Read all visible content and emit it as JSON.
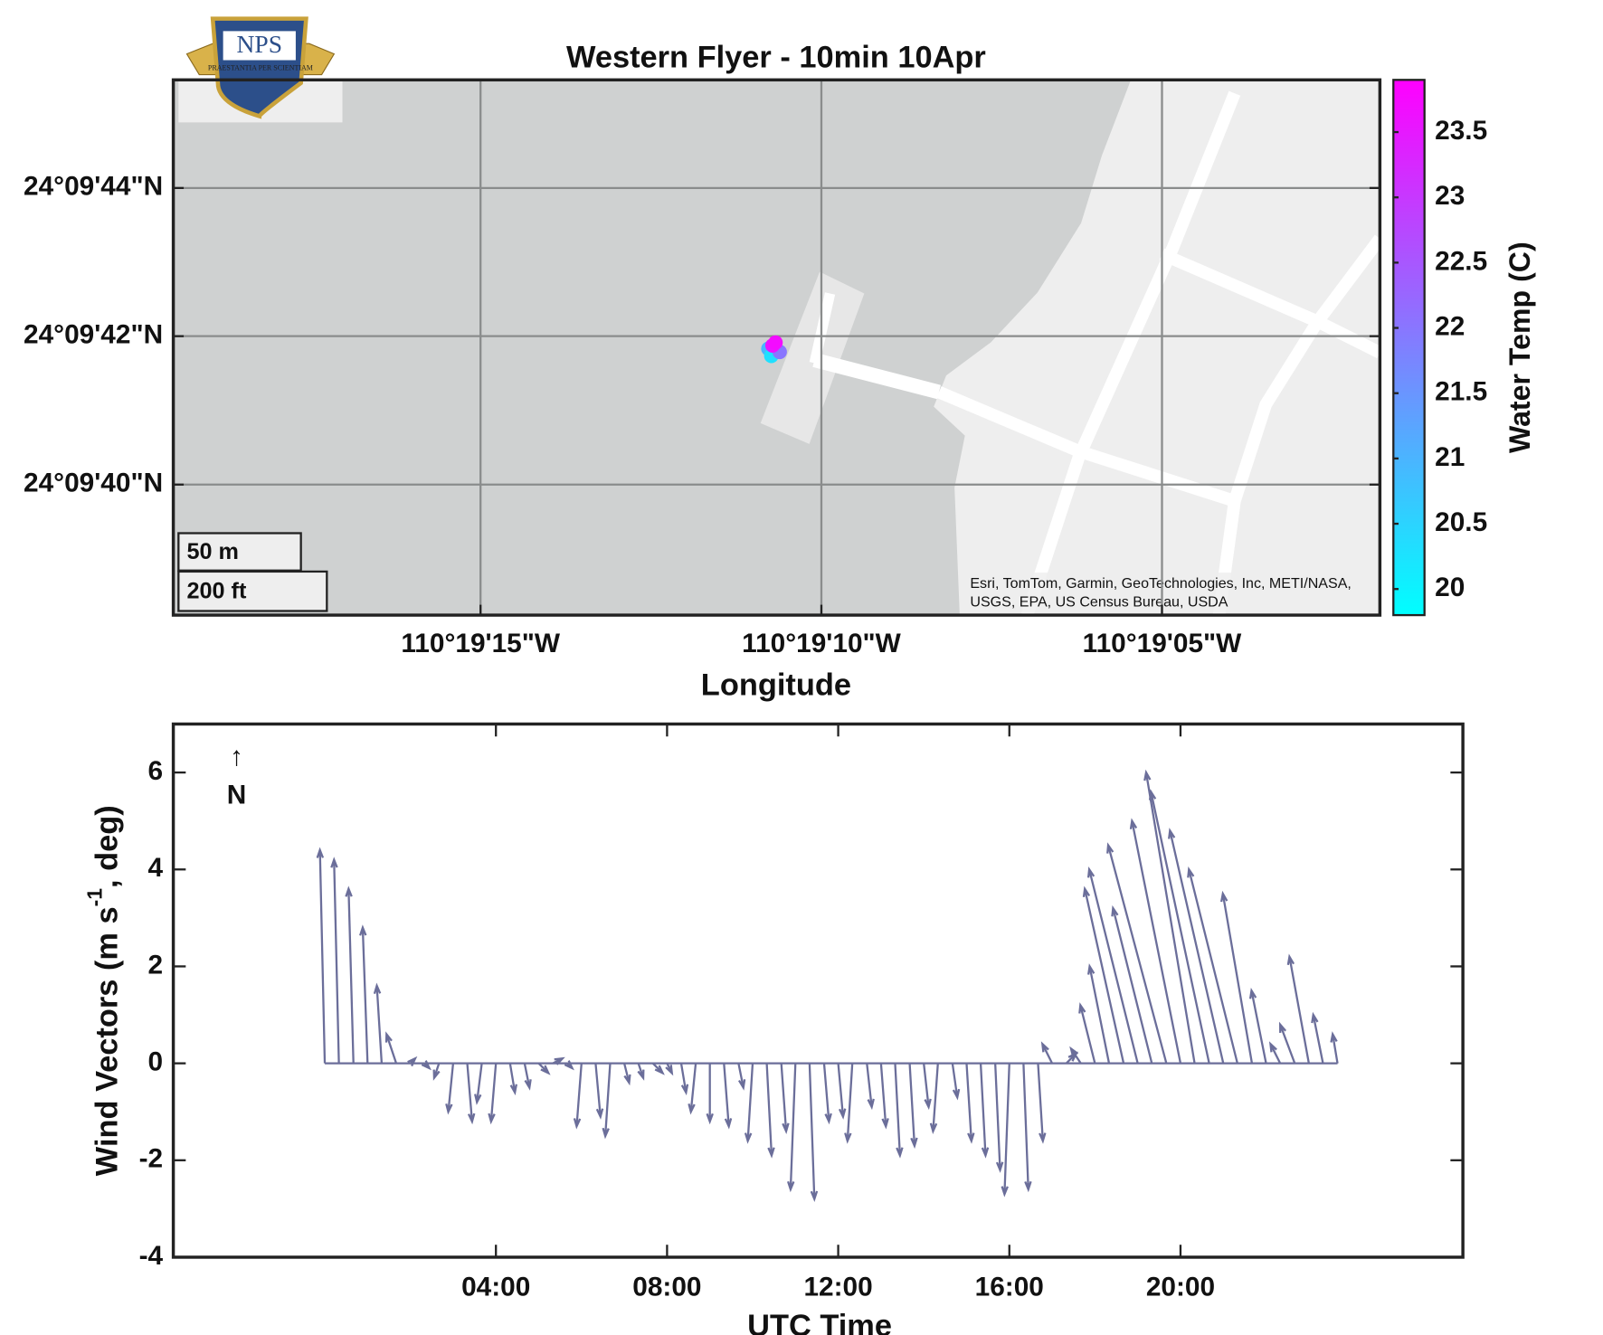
{
  "logo": {
    "text": "NPS",
    "motto": "PRAESTANTIA PER SCIENTIAM"
  },
  "chart_data": [
    {
      "type": "map",
      "title": "Western Flyer - 10min 10Apr",
      "xlabel": "Longitude",
      "xlim": [
        -110.322085,
        -110.317168
      ],
      "ylim": [
        24.160622,
        24.162627
      ],
      "xticks": [
        {
          "value": -110.320833,
          "label": "110°19'15\"W"
        },
        {
          "value": -110.319444,
          "label": "110°19'10\"W"
        },
        {
          "value": -110.318056,
          "label": "110°19'05\"W"
        }
      ],
      "yticks": [
        {
          "value": 24.161111,
          "label": "24°09'40\"N"
        },
        {
          "value": 24.161667,
          "label": "24°09'42\"N"
        },
        {
          "value": 24.162222,
          "label": "24°09'44\"N"
        }
      ],
      "grid": true,
      "x": [
        -110.31966,
        -110.319648,
        -110.319614,
        -110.319643,
        -110.319631
      ],
      "y": [
        24.16162,
        24.161593,
        24.161608,
        24.161632,
        24.161643
      ],
      "values": [
        21.0,
        20.3,
        22.0,
        23.6,
        23.7
      ],
      "colorbar": {
        "label": "Water Temp (C)",
        "clim": [
          19.8,
          23.9
        ],
        "ticks": [
          20,
          20.5,
          21,
          21.5,
          22,
          22.5,
          23,
          23.5
        ],
        "colormap": [
          "#00ffff",
          "#ff00ff"
        ]
      },
      "scale_bar": [
        "50 m",
        "200 ft"
      ],
      "attribution": [
        "Esri, TomTom, Garmin, GeoTechnologies, Inc, METI/NASA,",
        "USGS, EPA, US Census Bureau, USDA"
      ]
    },
    {
      "type": "quiver",
      "xlabel": "UTC Time",
      "ylabel": [
        "Wind Vectors (m s",
        "-1",
        ", deg)"
      ],
      "xlim": [
        -3.54,
        26.6
      ],
      "ylim": [
        -4,
        7
      ],
      "xticks": [
        {
          "value": 4,
          "label": "04:00"
        },
        {
          "value": 8,
          "label": "08:00"
        },
        {
          "value": 12,
          "label": "12:00"
        },
        {
          "value": 16,
          "label": "16:00"
        },
        {
          "value": 20,
          "label": "20:00"
        }
      ],
      "yticks": [
        -4,
        -2,
        0,
        2,
        4,
        6
      ],
      "color": "#6b6e9a",
      "north_arrow": "↑",
      "north_label": "N",
      "x": [
        0,
        0.33,
        0.67,
        1,
        1.33,
        1.67,
        2,
        2.33,
        2.67,
        3,
        3.33,
        3.67,
        4,
        4.33,
        4.67,
        5,
        5.33,
        5.67,
        6,
        6.33,
        6.67,
        7,
        7.33,
        7.67,
        8,
        8.33,
        8.67,
        9,
        9.33,
        9.67,
        10,
        10.33,
        10.67,
        11,
        11.33,
        11.67,
        12,
        12.33,
        12.67,
        13,
        13.33,
        13.67,
        14,
        14.33,
        14.67,
        15,
        15.33,
        15.67,
        16,
        16.33,
        16.67,
        17,
        17.33,
        17.67,
        18,
        18.33,
        18.67,
        19,
        19.33,
        19.67,
        20,
        20.33,
        20.67,
        21,
        21.33,
        21.67,
        22,
        22.33,
        22.67,
        23,
        23.33,
        23.67
      ],
      "u": [
        -0.1,
        -0.1,
        -0.1,
        -0.1,
        -0.1,
        -0.2,
        0.1,
        0.1,
        -0.1,
        -0.1,
        0.1,
        -0.1,
        -0.1,
        0.1,
        0.1,
        0.2,
        0.2,
        0.1,
        -0.1,
        0.1,
        -0.1,
        0.1,
        0.1,
        0.2,
        0.1,
        0.1,
        -0.1,
        0,
        0.1,
        0.1,
        -0.1,
        0.1,
        0.1,
        -0.1,
        0.1,
        0.1,
        0.1,
        -0.1,
        0.1,
        0.1,
        0.1,
        0.1,
        0.1,
        -0.1,
        0.1,
        0.1,
        0.1,
        0.1,
        -0.1,
        0.1,
        0.1,
        -0.2,
        0.2,
        -0.2,
        -0.3,
        -0.4,
        -0.8,
        -1.0,
        -0.8,
        -1.2,
        -1.0,
        -1.0,
        -1.2,
        -1.1,
        -1.0,
        -0.6,
        -0.3,
        -0.2,
        -0.3,
        -0.4,
        -0.2,
        -0.1
      ],
      "v": [
        4.4,
        4.2,
        3.6,
        2.8,
        1.6,
        0.6,
        0.1,
        -0.1,
        -0.3,
        -1.0,
        -1.2,
        -0.8,
        -1.2,
        -0.6,
        -0.5,
        -0.2,
        0.1,
        -0.1,
        -1.3,
        -1.1,
        -1.5,
        -0.4,
        -0.3,
        -0.2,
        -0.2,
        -0.6,
        -1.0,
        -1.2,
        -1.3,
        -0.5,
        -1.6,
        -1.9,
        -1.4,
        -2.6,
        -2.8,
        -1.2,
        -1.1,
        -1.6,
        -0.9,
        -1.3,
        -1.9,
        -1.7,
        -0.9,
        -1.4,
        -0.7,
        -1.6,
        -1.9,
        -2.2,
        -2.7,
        -2.6,
        -1.6,
        0.4,
        0.2,
        0.3,
        1.2,
        2.0,
        3.6,
        4.0,
        3.2,
        4.5,
        5.0,
        6.0,
        5.6,
        4.8,
        4.0,
        3.5,
        1.5,
        0.4,
        0.8,
        2.2,
        1.0,
        0.6
      ]
    }
  ]
}
